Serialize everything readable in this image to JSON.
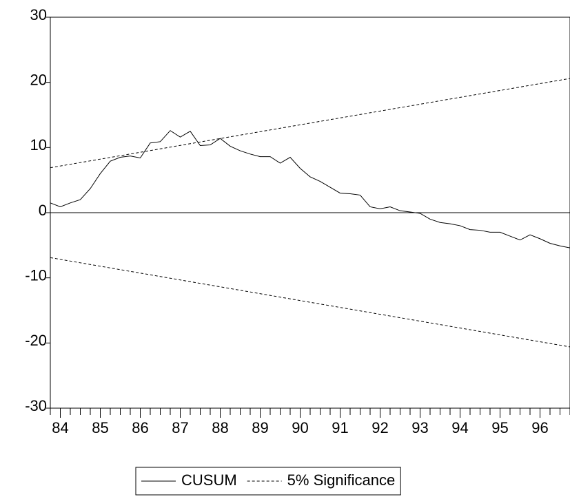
{
  "chart_data": {
    "type": "line",
    "ylim": [
      -30,
      30
    ],
    "yticks": [
      -30,
      -20,
      -10,
      0,
      10,
      20,
      30
    ],
    "xlim": [
      83.75,
      96.75
    ],
    "xticks": [
      84,
      85,
      86,
      87,
      88,
      89,
      90,
      91,
      92,
      93,
      94,
      95,
      96
    ],
    "xminorticks": [
      83.75,
      84.0,
      84.25,
      84.5,
      84.75,
      85.0,
      85.25,
      85.5,
      85.75,
      86.0,
      86.25,
      86.5,
      86.75,
      87.0,
      87.25,
      87.5,
      87.75,
      88.0,
      88.25,
      88.5,
      88.75,
      89.0,
      89.25,
      89.5,
      89.75,
      90.0,
      90.25,
      90.5,
      90.75,
      91.0,
      91.25,
      91.5,
      91.75,
      92.0,
      92.25,
      92.5,
      92.75,
      93.0,
      93.25,
      93.5,
      93.75,
      94.0,
      94.25,
      94.5,
      94.75,
      95.0,
      95.25,
      95.5,
      95.75,
      96.0,
      96.25,
      96.5,
      96.75
    ],
    "zero_line": true,
    "series": [
      {
        "name": "CUSUM",
        "color": "#000000",
        "style": "solid",
        "x": [
          83.75,
          84.0,
          84.25,
          84.5,
          84.75,
          85.0,
          85.25,
          85.5,
          85.75,
          86.0,
          86.25,
          86.5,
          86.75,
          87.0,
          87.25,
          87.5,
          87.75,
          88.0,
          88.25,
          88.5,
          88.75,
          89.0,
          89.25,
          89.5,
          89.75,
          90.0,
          90.25,
          90.5,
          90.75,
          91.0,
          91.25,
          91.5,
          91.75,
          92.0,
          92.25,
          92.5,
          92.75,
          93.0,
          93.25,
          93.5,
          93.75,
          94.0,
          94.25,
          94.5,
          94.75,
          95.0,
          95.25,
          95.5,
          95.75,
          96.0,
          96.25,
          96.5,
          96.75
        ],
        "values": [
          1.5,
          0.9,
          1.5,
          2.0,
          3.7,
          6.0,
          7.9,
          8.5,
          8.7,
          8.4,
          10.7,
          10.9,
          12.6,
          11.6,
          12.5,
          10.3,
          10.4,
          11.4,
          10.2,
          9.5,
          9.0,
          8.6,
          8.6,
          7.6,
          8.5,
          6.8,
          5.5,
          4.8,
          3.9,
          3.0,
          2.9,
          2.7,
          0.9,
          0.6,
          0.9,
          0.3,
          0.1,
          -0.1,
          -1.0,
          -1.5,
          -1.7,
          -2.0,
          -2.6,
          -2.7,
          -3.0,
          -3.0,
          -3.6,
          -4.2,
          -3.4,
          -4.0,
          -4.7,
          -5.1,
          -5.4
        ]
      },
      {
        "name": "5% Significance",
        "color": "#000000",
        "style": "dashed",
        "x": [
          83.75,
          96.75
        ],
        "upper": [
          6.9,
          20.6
        ],
        "lower": [
          -6.9,
          -20.6
        ]
      }
    ],
    "legend": "bottom"
  }
}
